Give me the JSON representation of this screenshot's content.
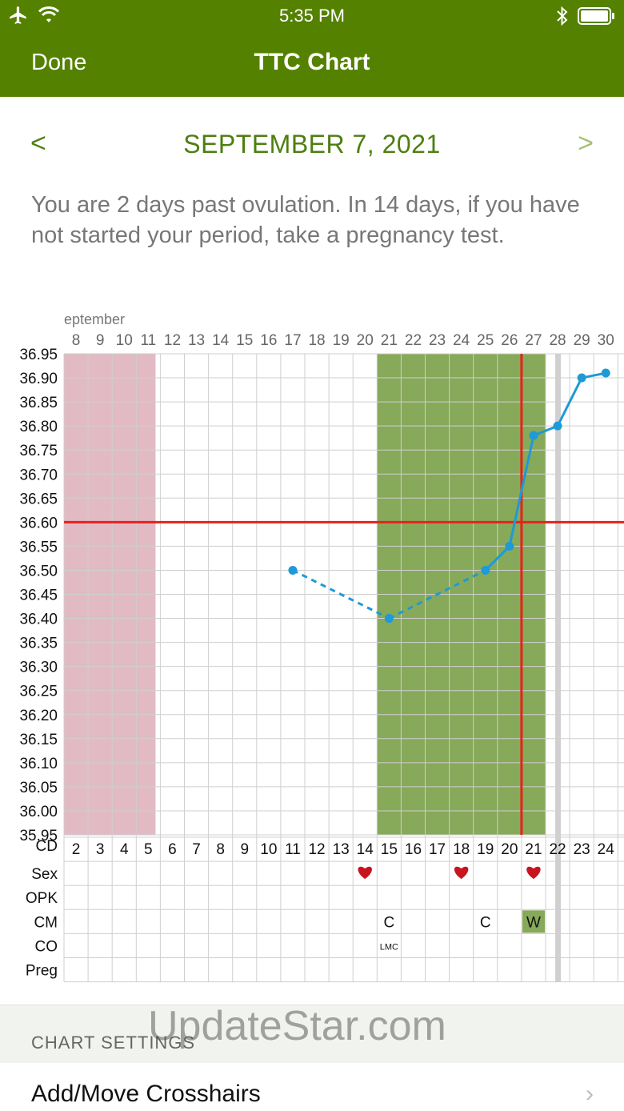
{
  "status": {
    "time": "5:35 PM"
  },
  "nav": {
    "done_label": "Done",
    "title": "TTC Chart"
  },
  "date_nav": {
    "prev_label": "<",
    "date": "SEPTEMBER 7, 2021",
    "next_label": ">"
  },
  "message": "You are 2 days past ovulation. In 14 days, if you have not started your period, take a pregnancy test.",
  "settings": {
    "header": "CHART SETTINGS",
    "crosshairs_label": "Add/Move Crosshairs"
  },
  "watermark": "UpdateStar.com",
  "chart_data": {
    "type": "line",
    "month_label": "eptember",
    "dates": [
      "8",
      "9",
      "10",
      "11",
      "12",
      "13",
      "14",
      "15",
      "16",
      "17",
      "18",
      "19",
      "20",
      "21",
      "22",
      "23",
      "24",
      "25",
      "26",
      "27",
      "28",
      "29",
      "30"
    ],
    "cycle_days": [
      "2",
      "3",
      "4",
      "5",
      "6",
      "7",
      "8",
      "9",
      "10",
      "11",
      "12",
      "13",
      "14",
      "15",
      "16",
      "17",
      "18",
      "19",
      "20",
      "21",
      "22",
      "23",
      "24"
    ],
    "yticks": [
      "36.95",
      "36.90",
      "36.85",
      "36.80",
      "36.75",
      "36.70",
      "36.65",
      "36.60",
      "36.55",
      "36.50",
      "36.45",
      "36.40",
      "36.35",
      "36.30",
      "36.25",
      "36.20",
      "36.15",
      "36.10",
      "36.05",
      "36.00",
      "35.95"
    ],
    "ylim": [
      35.95,
      36.95
    ],
    "temps": [
      {
        "cd": 10,
        "y": 36.5
      },
      {
        "cd": 14,
        "y": 36.4
      },
      {
        "cd": 18,
        "y": 36.5
      },
      {
        "cd": 19,
        "y": 36.55
      },
      {
        "cd": 20,
        "y": 36.78
      },
      {
        "cd": 21,
        "y": 36.8
      },
      {
        "cd": 22,
        "y": 36.9
      },
      {
        "cd": 23,
        "y": 36.91
      }
    ],
    "dashed_until_cd": 18,
    "coverline": 36.6,
    "ovulation_cd": 19,
    "today_cd": 21,
    "period_cd_range": [
      1,
      4
    ],
    "fertile_cd_range": [
      14,
      20
    ],
    "colors": {
      "line": "#1e9ad6",
      "crosshair": "#e8211a",
      "period": "#e2bac4",
      "fertile": "#87a95a",
      "today": "#d0d0d0",
      "heart": "#c8141e"
    },
    "row_labels": [
      "CD",
      "Sex",
      "OPK",
      "CM",
      "CO",
      "Preg"
    ],
    "sex_cd": [
      13,
      17,
      20
    ],
    "cm": [
      {
        "cd": 14,
        "text": "C"
      },
      {
        "cd": 18,
        "text": "C"
      },
      {
        "cd": 20,
        "text": "W",
        "fill": "#87a95a"
      }
    ],
    "co": [
      {
        "cd": 14,
        "text": "LMC"
      }
    ]
  }
}
